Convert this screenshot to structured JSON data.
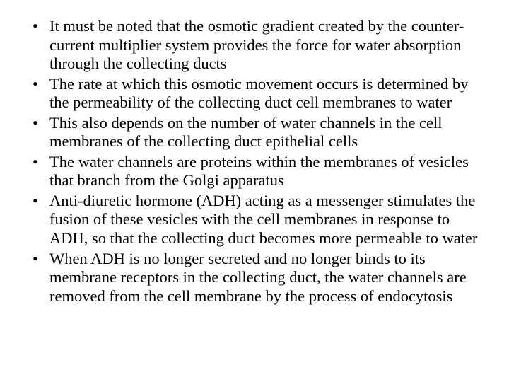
{
  "text_color": "#000000",
  "background_color": "#ffffff",
  "font_family": "Times New Roman",
  "font_size_pt": 17,
  "bullets": [
    "It must be noted that the osmotic gradient created by the counter-current multiplier system provides the force for water absorption through the collecting ducts",
    "The rate at which this osmotic movement occurs is determined by the permeability of the collecting duct cell membranes to water",
    "This also depends on the number of water channels in the cell membranes of the collecting duct epithelial cells",
    "The water channels are proteins within the membranes of vesicles that branch from the Golgi apparatus",
    "Anti-diuretic hormone (ADH) acting as a messenger stimulates the fusion of these vesicles with the cell membranes in response to ADH, so that the collecting duct becomes more permeable to water",
    "When ADH is no longer secreted and no longer binds to its membrane receptors in the collecting duct, the water channels are removed from the cell membrane by the process of endocytosis"
  ]
}
